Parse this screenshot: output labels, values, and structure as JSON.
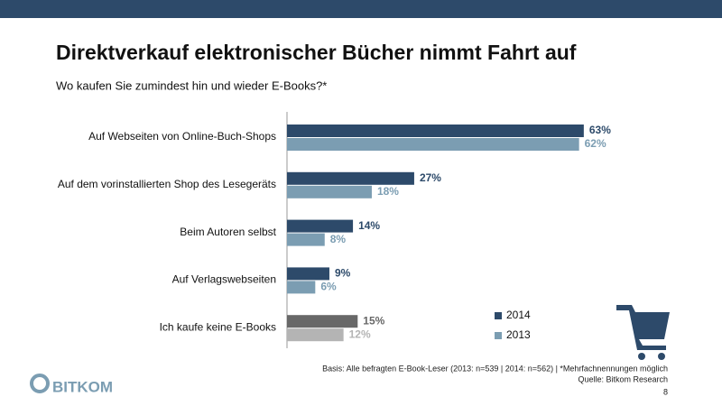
{
  "chart_data": {
    "type": "hbar",
    "title": "Direktverkauf elektronischer Bücher nimmt Fahrt auf",
    "subtitle": "Wo kaufen Sie zumindest hin und wieder E-Books?*",
    "categories": [
      "Auf Webseiten von Online-Buch-Shops",
      "Auf dem vorinstallierten Shop des Lesegeräts",
      "Beim Autoren selbst",
      "Auf Verlagswebseiten",
      "Ich kaufe keine E-Books"
    ],
    "series": [
      {
        "name": "2014",
        "color": "#2d4a6a",
        "colors": [
          "#2d4a6a",
          "#2d4a6a",
          "#2d4a6a",
          "#2d4a6a",
          "#686868"
        ],
        "values": [
          63,
          27,
          14,
          9,
          15
        ],
        "value_labels": [
          "63%",
          "27%",
          "14%",
          "9%",
          "15%"
        ]
      },
      {
        "name": "2013",
        "color": "#7b9db2",
        "colors": [
          "#7b9db2",
          "#7b9db2",
          "#7b9db2",
          "#7b9db2",
          "#b4b4b4"
        ],
        "values": [
          62,
          18,
          8,
          6,
          12
        ],
        "value_labels": [
          "62%",
          "18%",
          "8%",
          "6%",
          "12%"
        ]
      }
    ],
    "xlim": [
      0,
      100
    ],
    "footnote": "Basis: Alle befragten E-Book-Leser (2013: n=539 | 2014: n=562) | *Mehrfachnennungen möglich",
    "source": "Quelle: Bitkom Research",
    "page_number": "8",
    "logo": "BITKOM"
  }
}
